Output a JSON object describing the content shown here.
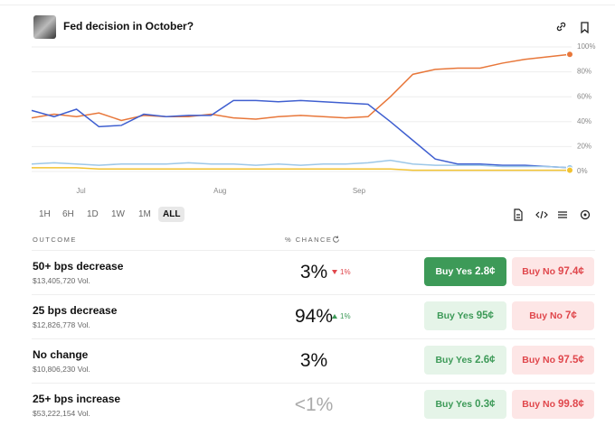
{
  "header": {
    "title": "Fed decision in October?"
  },
  "chart": {
    "type": "line",
    "x": [
      0,
      5,
      10,
      15,
      20,
      25,
      30,
      35,
      40,
      45,
      50,
      55,
      60,
      65,
      70,
      75,
      80,
      85,
      90,
      95,
      100,
      105,
      110,
      115,
      120
    ],
    "xlim": [
      0,
      120
    ],
    "xticks": [
      {
        "value": 11,
        "label": "Jul"
      },
      {
        "value": 42,
        "label": "Aug"
      },
      {
        "value": 73,
        "label": "Sep"
      }
    ],
    "ylim": [
      0,
      100
    ],
    "yticks": [
      {
        "value": 0,
        "label": "0%"
      },
      {
        "value": 20,
        "label": "20%"
      },
      {
        "value": 40,
        "label": "40%"
      },
      {
        "value": 60,
        "label": "60%"
      },
      {
        "value": 80,
        "label": "80%"
      },
      {
        "value": 100,
        "label": "100%"
      }
    ],
    "grid": true,
    "series": [
      {
        "color": "#e8773a",
        "values": [
          43,
          46,
          44,
          47,
          41,
          45,
          44,
          44,
          46,
          43,
          42,
          44,
          45,
          44,
          43,
          44,
          60,
          78,
          82,
          83,
          83,
          87,
          90,
          92,
          94
        ]
      },
      {
        "color": "#3f5fd0",
        "values": [
          49,
          44,
          50,
          36,
          37,
          46,
          44,
          45,
          45,
          57,
          57,
          56,
          57,
          56,
          55,
          54,
          40,
          25,
          10,
          6,
          6,
          5,
          5,
          4,
          3
        ]
      },
      {
        "color": "#9cc7e8",
        "values": [
          6,
          7,
          6,
          5,
          6,
          6,
          6,
          7,
          6,
          6,
          5,
          6,
          5,
          6,
          6,
          7,
          9,
          6,
          5,
          5,
          5,
          4,
          4,
          4,
          3
        ]
      },
      {
        "color": "#f2c230",
        "values": [
          3,
          3,
          3,
          2,
          2,
          2,
          2,
          2,
          2,
          2,
          2,
          2,
          2,
          2,
          2,
          2,
          2,
          1,
          1,
          1,
          1,
          1,
          1,
          1,
          1
        ]
      }
    ]
  },
  "ranges": {
    "options": [
      "1H",
      "6H",
      "1D",
      "1W",
      "1M",
      "ALL"
    ],
    "active": 5
  },
  "table": {
    "headers": [
      "OUTCOME",
      "% CHANCE"
    ],
    "rows": [
      {
        "name": "50+ bps decrease",
        "volume": "$13,405,720 Vol.",
        "chance": "3%",
        "change": "1%",
        "direction": "down",
        "yes_label": "Buy Yes",
        "yes_price": "2.8¢",
        "no_label": "Buy No",
        "no_price": "97.4¢",
        "highlighted": true
      },
      {
        "name": "25 bps decrease",
        "volume": "$12,826,778 Vol.",
        "chance": "94%",
        "change": "1%",
        "direction": "up",
        "yes_label": "Buy Yes",
        "yes_price": "95¢",
        "no_label": "Buy No",
        "no_price": "7¢",
        "highlighted": false
      },
      {
        "name": "No change",
        "volume": "$10,806,230 Vol.",
        "chance": "3%",
        "yes_label": "Buy Yes",
        "yes_price": "2.6¢",
        "no_label": "Buy No",
        "no_price": "97.5¢",
        "highlighted": false
      },
      {
        "name": "25+ bps increase",
        "volume": "$53,222,154 Vol.",
        "chance": "<1%",
        "muted": true,
        "yes_label": "Buy Yes",
        "yes_price": "0.3¢",
        "no_label": "Buy No",
        "no_price": "99.8¢",
        "highlighted": false
      }
    ]
  }
}
